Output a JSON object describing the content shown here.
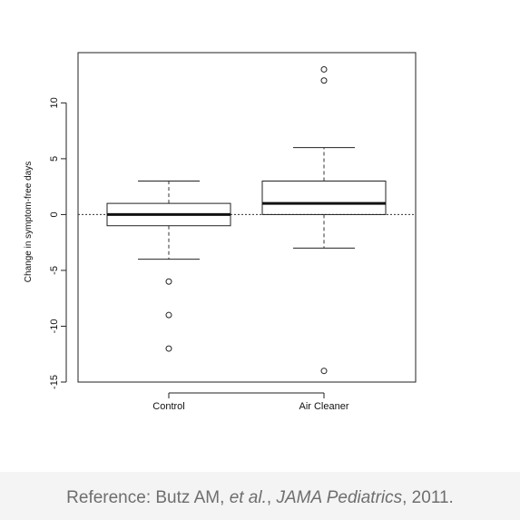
{
  "chart_data": {
    "type": "boxplot",
    "ylabel": "Change in symptom-free days",
    "ylim": [
      -15,
      14.5
    ],
    "yticks": [
      -15,
      -10,
      -5,
      0,
      5,
      10
    ],
    "reference_line": 0,
    "categories": [
      "Control",
      "Air Cleaner"
    ],
    "boxes": [
      {
        "name": "Control",
        "whisker_low": -4,
        "q1": -1,
        "median": 0,
        "q3": 1,
        "whisker_high": 3,
        "outliers": [
          -6,
          -9,
          -12
        ]
      },
      {
        "name": "Air Cleaner",
        "whisker_low": -3,
        "q1": 0,
        "median": 1,
        "q3": 3,
        "whisker_high": 6,
        "outliers": [
          13,
          12,
          -14
        ]
      }
    ]
  },
  "footer": {
    "reference_prefix": "Reference: Butz AM, ",
    "reference_etal": "et al.",
    "reference_sep": ", ",
    "reference_journal": "JAMA Pediatrics",
    "reference_year": ", 2011."
  }
}
